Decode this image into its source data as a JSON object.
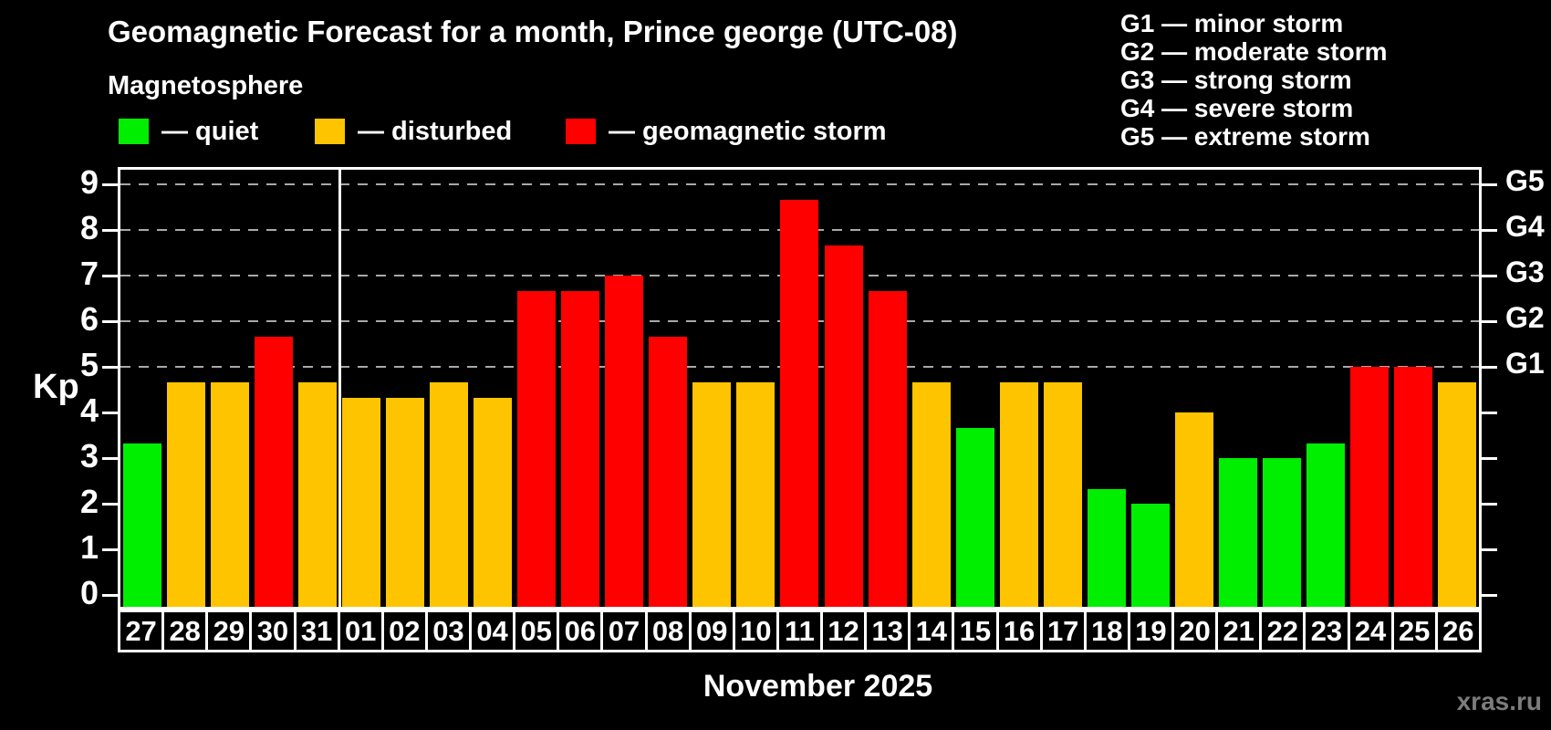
{
  "header": {
    "title": "Geomagnetic Forecast for a month, Prince george (UTC-08)",
    "subtitle": "Magnetosphere"
  },
  "legend": [
    {
      "key": "quiet",
      "label": "— quiet"
    },
    {
      "key": "disturbed",
      "label": "— disturbed"
    },
    {
      "key": "storm",
      "label": "— geomagnetic storm"
    }
  ],
  "g_legend": [
    "G1 — minor storm",
    "G2 — moderate storm",
    "G3 — strong storm",
    "G4 — severe storm",
    "G5 — extreme storm"
  ],
  "axes": {
    "y_label": "Kp",
    "y_ticks": [
      0,
      1,
      2,
      3,
      4,
      5,
      6,
      7,
      8,
      9
    ],
    "right_labels": {
      "5": "G1",
      "6": "G2",
      "7": "G3",
      "8": "G4",
      "9": "G5"
    }
  },
  "footer": {
    "month_label": "November 2025",
    "watermark": "xras.ru"
  },
  "colors": {
    "quiet": "#00ee00",
    "disturbed": "#ffc400",
    "storm": "#ff0000",
    "axis": "#ffffff",
    "grid": "#a9a9a9",
    "background": "#000000",
    "watermark": "#7c7c7c"
  },
  "chart_data": {
    "type": "bar",
    "title": "Geomagnetic Forecast for a month, Prince george (UTC-08)",
    "xlabel": "November 2025",
    "ylabel": "Kp",
    "ylim": [
      0,
      9
    ],
    "grid": "dashed horizontal at Kp 5-9 (G1-G5)",
    "gridlines": [
      5,
      6,
      7,
      8,
      9
    ],
    "month_separator_after": "31",
    "categories": [
      "27",
      "28",
      "29",
      "30",
      "31",
      "01",
      "02",
      "03",
      "04",
      "05",
      "06",
      "07",
      "08",
      "09",
      "10",
      "11",
      "12",
      "13",
      "14",
      "15",
      "16",
      "17",
      "18",
      "19",
      "20",
      "21",
      "22",
      "23",
      "24",
      "25",
      "26"
    ],
    "values": [
      3.33,
      4.67,
      4.67,
      5.67,
      4.67,
      4.33,
      4.33,
      4.67,
      4.33,
      6.67,
      6.67,
      7.0,
      5.67,
      4.67,
      4.67,
      8.67,
      7.67,
      6.67,
      4.67,
      3.67,
      4.67,
      4.67,
      2.33,
      2.0,
      4.0,
      3.0,
      3.0,
      3.33,
      5.0,
      5.0,
      4.67
    ],
    "levels": [
      "quiet",
      "disturbed",
      "disturbed",
      "storm",
      "disturbed",
      "disturbed",
      "disturbed",
      "disturbed",
      "disturbed",
      "storm",
      "storm",
      "storm",
      "storm",
      "disturbed",
      "disturbed",
      "storm",
      "storm",
      "storm",
      "disturbed",
      "quiet",
      "disturbed",
      "disturbed",
      "quiet",
      "quiet",
      "disturbed",
      "quiet",
      "quiet",
      "quiet",
      "storm",
      "storm",
      "disturbed"
    ]
  }
}
